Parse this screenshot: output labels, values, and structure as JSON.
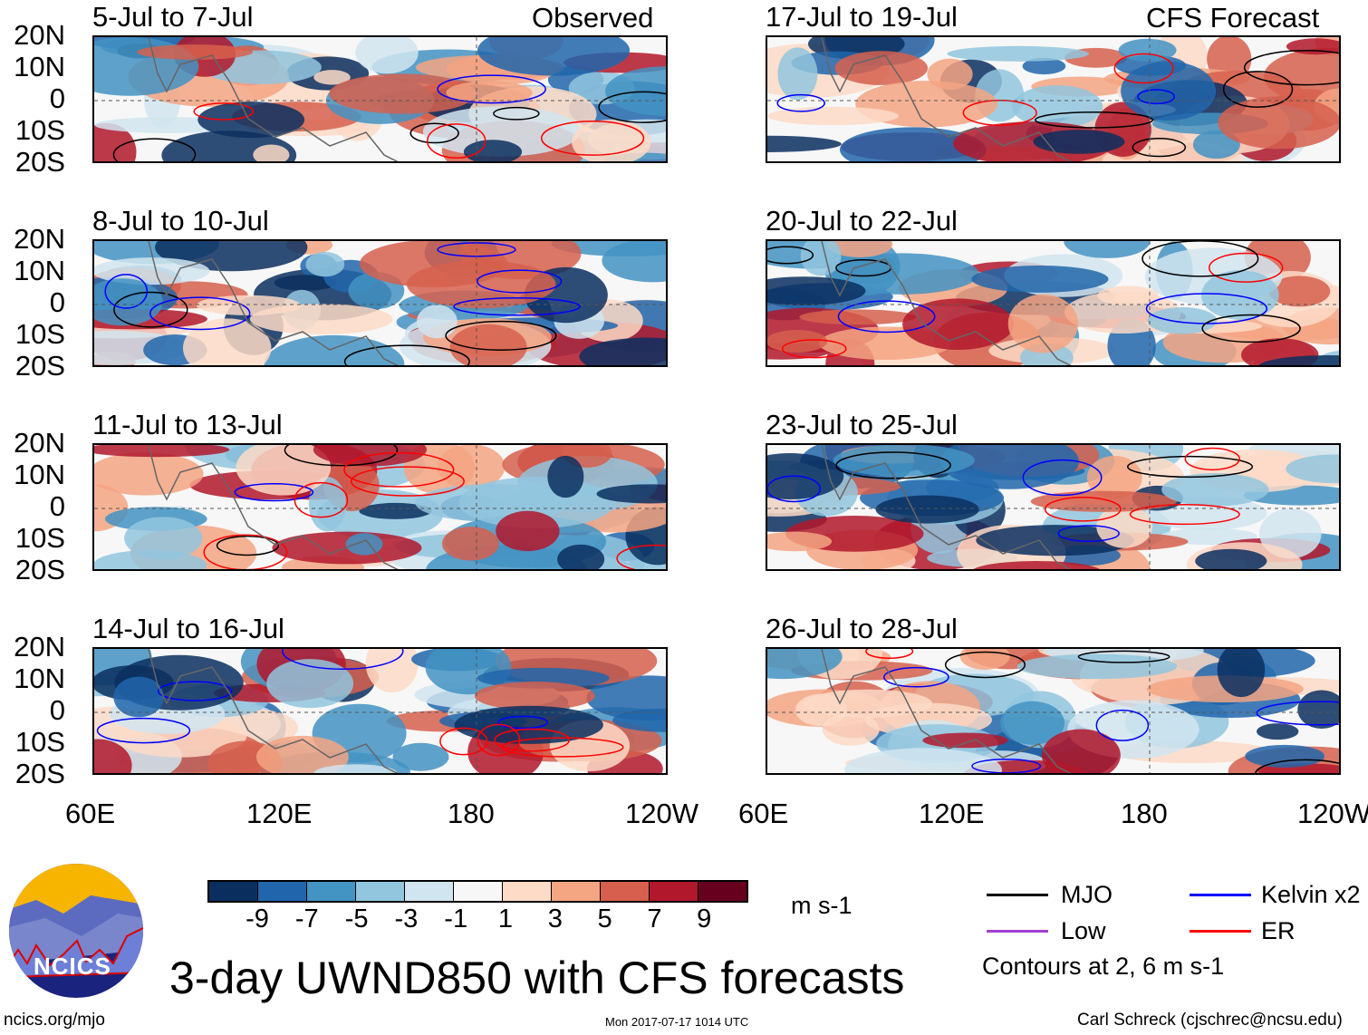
{
  "header": {
    "left_label": "Observed",
    "right_label": "CFS Forecast"
  },
  "panels_left": [
    {
      "title": "5-Jul to 7-Jul"
    },
    {
      "title": "8-Jul to 10-Jul"
    },
    {
      "title": "11-Jul to 13-Jul"
    },
    {
      "title": "14-Jul to 16-Jul"
    }
  ],
  "panels_right": [
    {
      "title": "17-Jul to 19-Jul"
    },
    {
      "title": "20-Jul to 22-Jul"
    },
    {
      "title": "23-Jul to 25-Jul"
    },
    {
      "title": "26-Jul to 28-Jul"
    }
  ],
  "lat_labels": [
    "20N",
    "10N",
    "0",
    "10S",
    "20S"
  ],
  "lon_labels": [
    "60E",
    "120E",
    "180",
    "120W"
  ],
  "colorbar": {
    "colors": [
      "#0a2f5f",
      "#2166ac",
      "#4393c3",
      "#92c5de",
      "#d1e5f0",
      "#f7f7f7",
      "#fddbc7",
      "#f4a582",
      "#d6604d",
      "#b2182b",
      "#67001f"
    ],
    "labels": [
      "-9",
      "-7",
      "-5",
      "-3",
      "-1",
      "1",
      "3",
      "5",
      "7",
      "9"
    ],
    "units": "m s-1"
  },
  "legend": {
    "items": [
      {
        "label": "MJO",
        "color": "#000000"
      },
      {
        "label": "Kelvin x2",
        "color": "#0000ff"
      },
      {
        "label": "Low",
        "color": "#a040d0"
      },
      {
        "label": "ER",
        "color": "#ff0000"
      }
    ],
    "note": "Contours at 2, 6 m s-1"
  },
  "title": "3-day UWND850 with CFS forecasts",
  "footer": {
    "logo_text": "NCICS",
    "url": "ncics.org/mjo",
    "timestamp": "Mon 2017-07-17 1014 UTC",
    "credit": "Carl Schreck (cjschrec@ncsu.edu)"
  }
}
